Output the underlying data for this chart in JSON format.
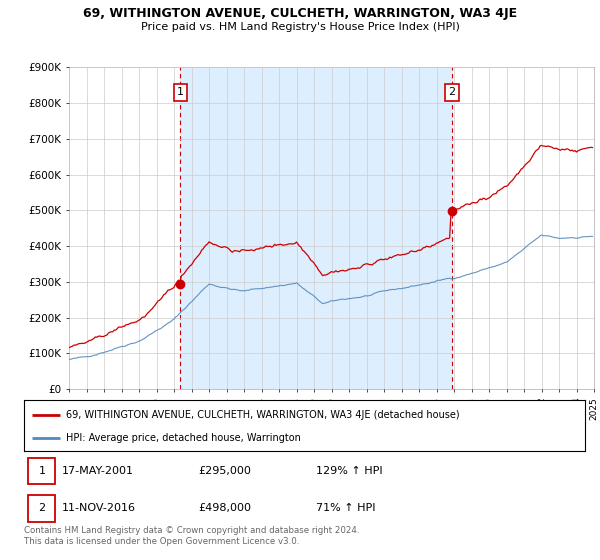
{
  "title": "69, WITHINGTON AVENUE, CULCHETH, WARRINGTON, WA3 4JE",
  "subtitle": "Price paid vs. HM Land Registry's House Price Index (HPI)",
  "legend_line1": "69, WITHINGTON AVENUE, CULCHETH, WARRINGTON, WA3 4JE (detached house)",
  "legend_line2": "HPI: Average price, detached house, Warrington",
  "sale1_date": "17-MAY-2001",
  "sale1_price": 295000,
  "sale1_hpi_pct": "129% ↑ HPI",
  "sale2_date": "11-NOV-2016",
  "sale2_price": 498000,
  "sale2_hpi_pct": "71% ↑ HPI",
  "footer": "Contains HM Land Registry data © Crown copyright and database right 2024.\nThis data is licensed under the Open Government Licence v3.0.",
  "red_color": "#cc0000",
  "blue_color": "#5588bb",
  "shade_color": "#ddeeff",
  "background_color": "#ffffff",
  "ylim": [
    0,
    900000
  ],
  "yticks": [
    0,
    100000,
    200000,
    300000,
    400000,
    500000,
    600000,
    700000,
    800000,
    900000
  ],
  "ytick_labels": [
    "£0",
    "£100K",
    "£200K",
    "£300K",
    "£400K",
    "£500K",
    "£600K",
    "£700K",
    "£800K",
    "£900K"
  ],
  "sale1_year": 2001.37,
  "sale2_year": 2016.87
}
